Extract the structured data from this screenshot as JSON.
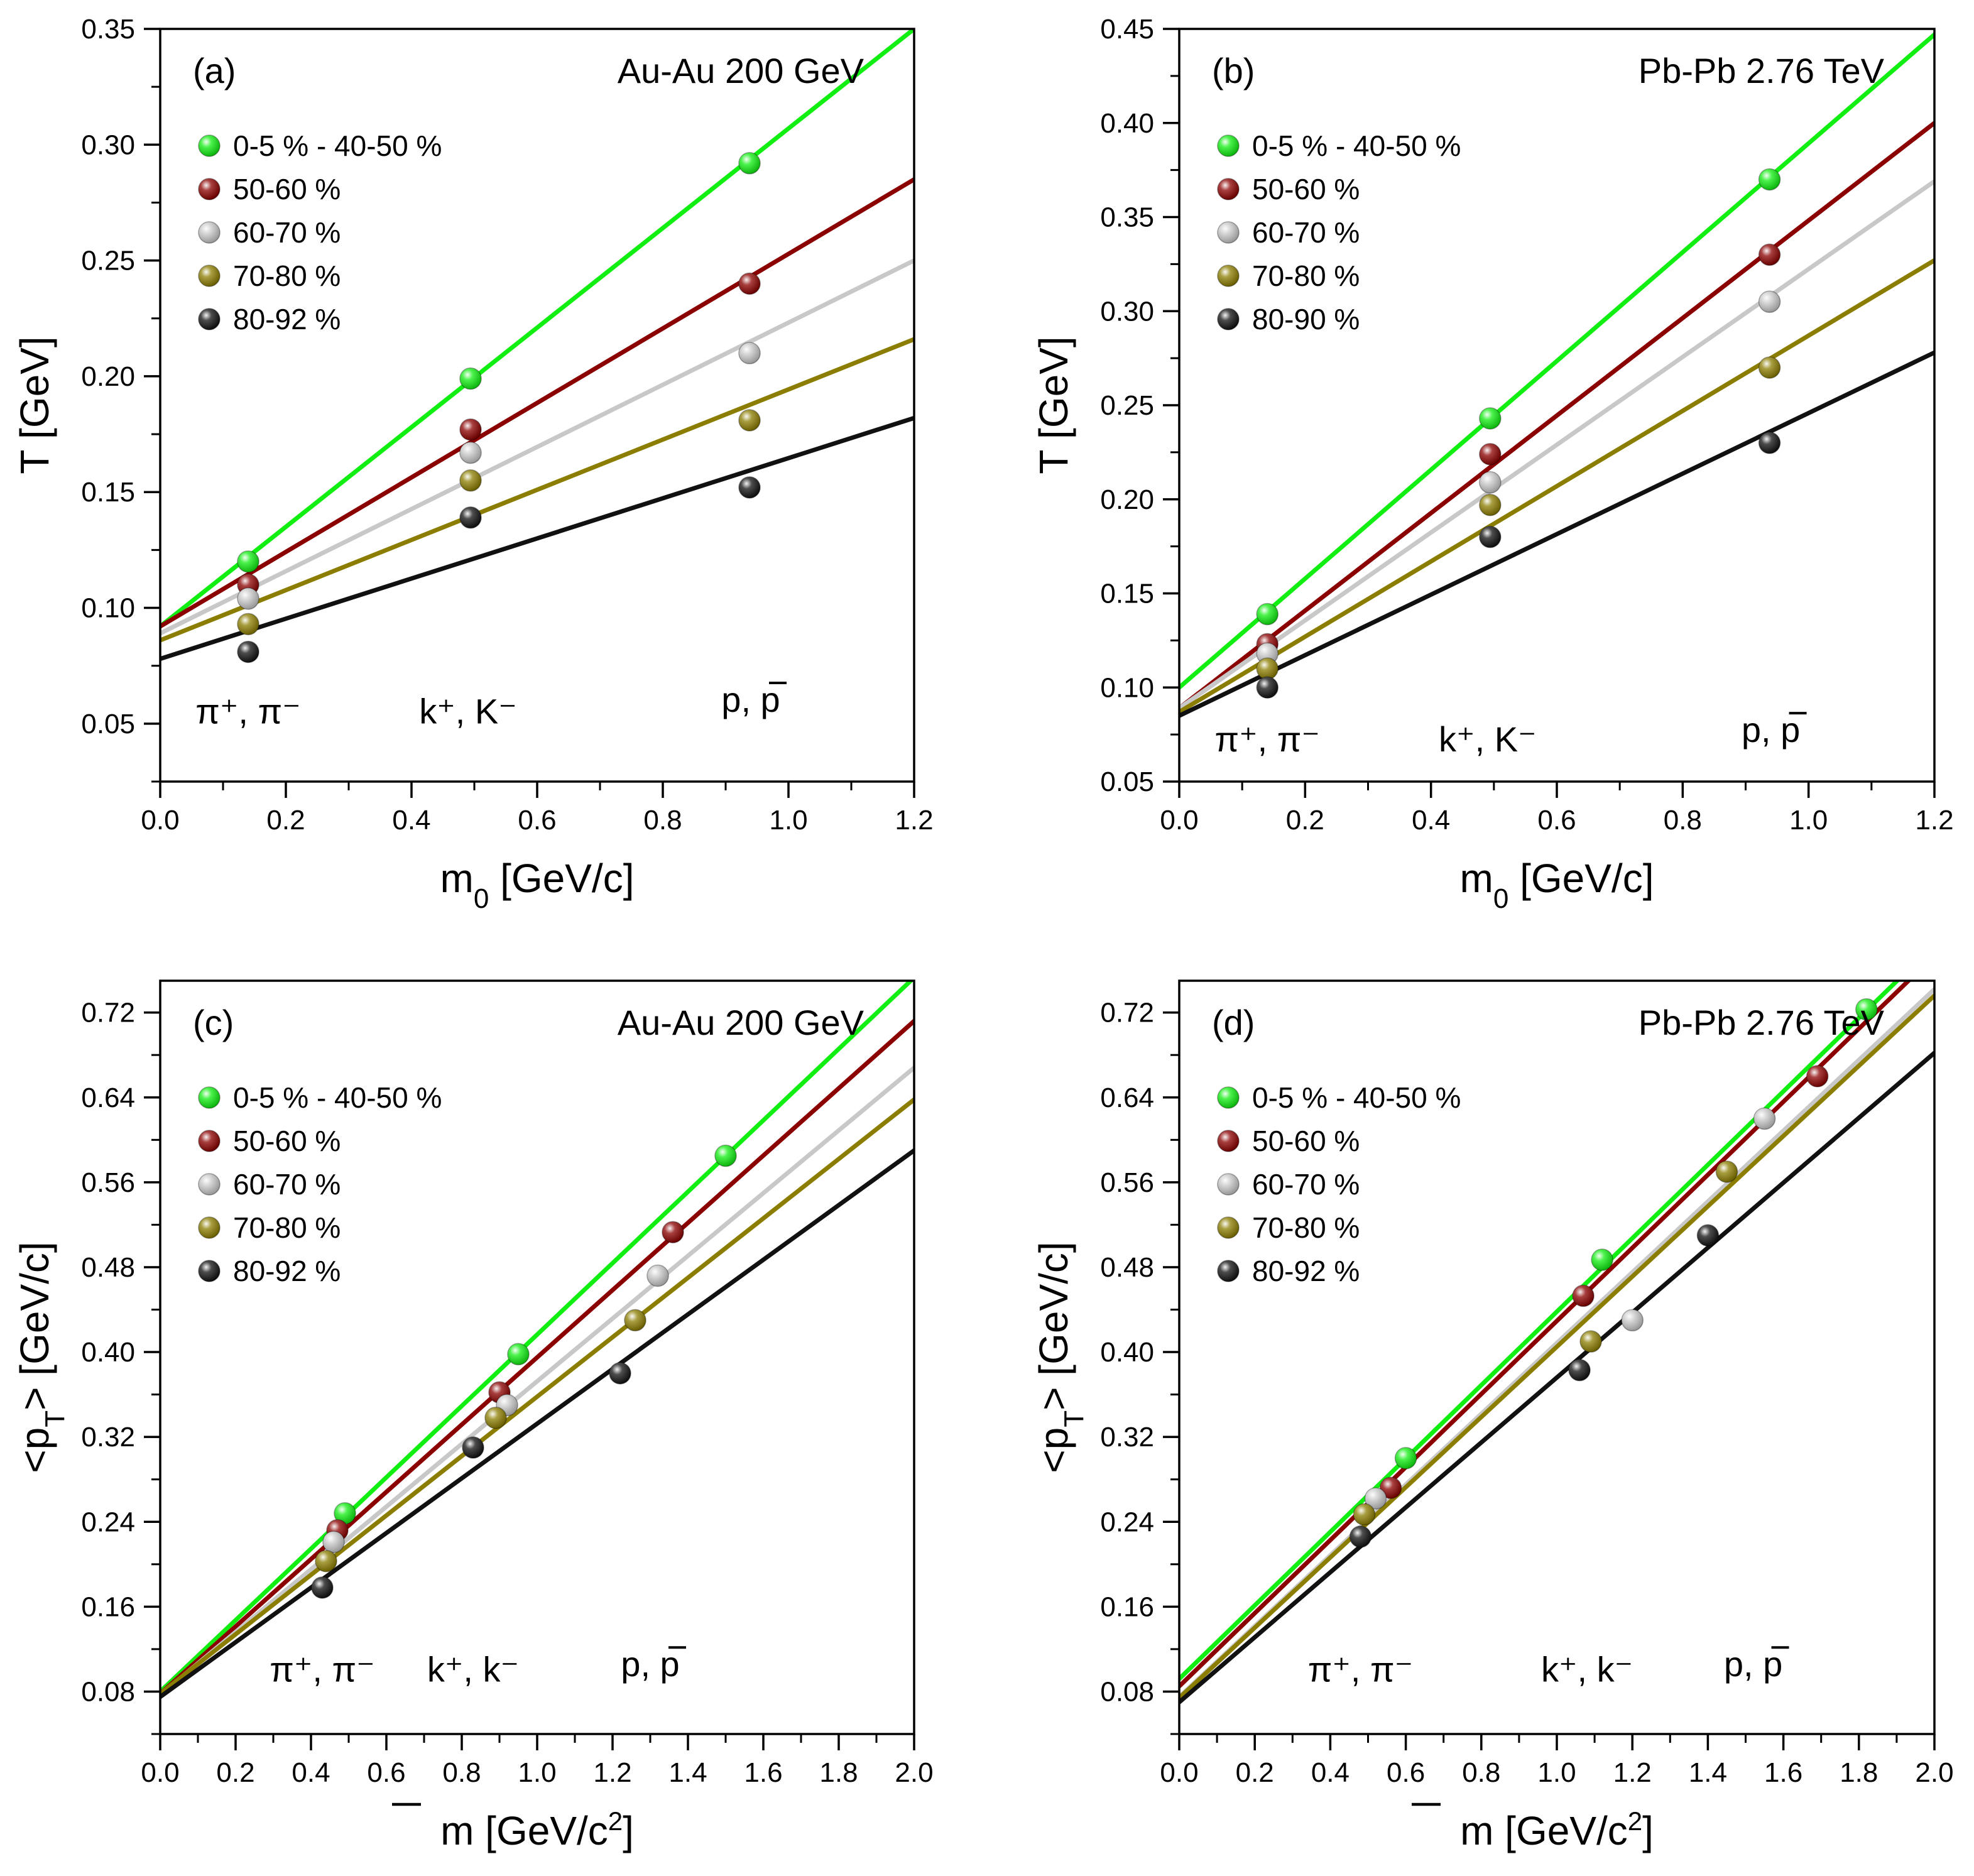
{
  "chart_data": [
    {
      "type": "scatter",
      "panel_label": "(a)",
      "system": "Au-Au  200 GeV",
      "xlabel": "m_0 [GeV/c]",
      "ylabel": "T [GeV]",
      "xlim": [
        0,
        1.2
      ],
      "ylim": [
        0.025,
        0.35
      ],
      "xticks": [
        0.0,
        0.2,
        0.4,
        0.6,
        0.8,
        1.0,
        1.2
      ],
      "xtick_labels": [
        "0.0",
        "0.2",
        "0.4",
        "0.6",
        "0.8",
        "1.0",
        "1.2"
      ],
      "yticks": [
        0.05,
        0.1,
        0.15,
        0.2,
        0.25,
        0.3,
        0.35
      ],
      "ytick_labels": [
        "0.05",
        "0.10",
        "0.15",
        "0.20",
        "0.25",
        "0.30",
        "0.35"
      ],
      "x_minor": 0.1,
      "y_minor": 0.025,
      "legend_position": "top-left",
      "particle_labels": [
        {
          "text": "π⁺, π⁻",
          "x": 0.14,
          "y": 0.055,
          "bar": false
        },
        {
          "text": "k⁺, K⁻",
          "x": 0.49,
          "y": 0.055,
          "bar": false
        },
        {
          "text": "p, p",
          "x": 0.94,
          "y": 0.06,
          "bar": true
        }
      ],
      "series": [
        {
          "name": "0-5 % - 40-50 %",
          "color": "#11ee11",
          "x": [
            0.14,
            0.494,
            0.938
          ],
          "y": [
            0.12,
            0.199,
            0.292
          ],
          "fit": [
            0.0,
            0.092,
            1.2,
            0.35
          ]
        },
        {
          "name": "50-60 %",
          "color": "#8b0000",
          "x": [
            0.14,
            0.494,
            0.938
          ],
          "y": [
            0.11,
            0.177,
            0.24
          ],
          "fit": [
            0.0,
            0.092,
            1.2,
            0.285
          ]
        },
        {
          "name": "60-70 %",
          "color": "#c8c8c8",
          "x": [
            0.14,
            0.494,
            0.938
          ],
          "y": [
            0.104,
            0.167,
            0.21
          ],
          "fit": [
            0.0,
            0.089,
            1.2,
            0.25
          ]
        },
        {
          "name": "70-80 %",
          "color": "#8b7d00",
          "x": [
            0.14,
            0.494,
            0.938
          ],
          "y": [
            0.093,
            0.155,
            0.181
          ],
          "fit": [
            0.0,
            0.086,
            1.2,
            0.216
          ]
        },
        {
          "name": "80-92 %",
          "color": "#111111",
          "x": [
            0.14,
            0.494,
            0.938
          ],
          "y": [
            0.081,
            0.139,
            0.152
          ],
          "fit": [
            0.0,
            0.078,
            1.2,
            0.182
          ]
        }
      ]
    },
    {
      "type": "scatter",
      "panel_label": "(b)",
      "system": "Pb-Pb  2.76 TeV",
      "xlabel": "m_0 [GeV/c]",
      "ylabel": "T [GeV]",
      "xlim": [
        0,
        1.2
      ],
      "ylim": [
        0.05,
        0.45
      ],
      "xticks": [
        0.0,
        0.2,
        0.4,
        0.6,
        0.8,
        1.0,
        1.2
      ],
      "xtick_labels": [
        "0.0",
        "0.2",
        "0.4",
        "0.6",
        "0.8",
        "1.0",
        "1.2"
      ],
      "yticks": [
        0.05,
        0.1,
        0.15,
        0.2,
        0.25,
        0.3,
        0.35,
        0.4,
        0.45
      ],
      "ytick_labels": [
        "0.05",
        "0.10",
        "0.15",
        "0.20",
        "0.25",
        "0.30",
        "0.35",
        "0.40",
        "0.45"
      ],
      "x_minor": 0.1,
      "y_minor": 0.025,
      "legend_position": "top-left",
      "particle_labels": [
        {
          "text": "π⁺, π⁻",
          "x": 0.14,
          "y": 0.072,
          "bar": false
        },
        {
          "text": "k⁺, K⁻",
          "x": 0.49,
          "y": 0.072,
          "bar": false
        },
        {
          "text": "p, p",
          "x": 0.94,
          "y": 0.077,
          "bar": true
        }
      ],
      "series": [
        {
          "name": "0-5 % - 40-50 %",
          "color": "#11ee11",
          "x": [
            0.14,
            0.494,
            0.938
          ],
          "y": [
            0.139,
            0.243,
            0.37
          ],
          "fit": [
            0.0,
            0.1,
            1.2,
            0.447
          ]
        },
        {
          "name": "50-60 %",
          "color": "#8b0000",
          "x": [
            0.14,
            0.494,
            0.938
          ],
          "y": [
            0.123,
            0.224,
            0.33
          ],
          "fit": [
            0.0,
            0.089,
            1.2,
            0.4
          ]
        },
        {
          "name": "60-70 %",
          "color": "#c8c8c8",
          "x": [
            0.14,
            0.494,
            0.938
          ],
          "y": [
            0.118,
            0.209,
            0.305
          ],
          "fit": [
            0.0,
            0.089,
            1.2,
            0.369
          ]
        },
        {
          "name": "70-80 %",
          "color": "#8b7d00",
          "x": [
            0.14,
            0.494,
            0.938
          ],
          "y": [
            0.11,
            0.197,
            0.27
          ],
          "fit": [
            0.0,
            0.087,
            1.2,
            0.327
          ]
        },
        {
          "name": "80-90 %",
          "color": "#111111",
          "x": [
            0.14,
            0.494,
            0.938
          ],
          "y": [
            0.1,
            0.18,
            0.23
          ],
          "fit": [
            0.0,
            0.085,
            1.2,
            0.278
          ]
        }
      ]
    },
    {
      "type": "scatter",
      "panel_label": "(c)",
      "system": "Au-Au  200 GeV",
      "xlabel": "m [GeV/c²]",
      "ylabel": "<p_T> [GeV/c]",
      "xlim": [
        0,
        2.0
      ],
      "ylim": [
        0.04,
        0.75
      ],
      "xticks": [
        0.0,
        0.2,
        0.4,
        0.6,
        0.8,
        1.0,
        1.2,
        1.4,
        1.6,
        1.8,
        2.0
      ],
      "xtick_labels": [
        "0.0",
        "0.2",
        "0.4",
        "0.6",
        "0.8",
        "1.0",
        "1.2",
        "1.4",
        "1.6",
        "1.8",
        "2.0"
      ],
      "yticks": [
        0.08,
        0.16,
        0.24,
        0.32,
        0.4,
        0.48,
        0.56,
        0.64,
        0.72
      ],
      "ytick_labels": [
        "0.08",
        "0.16",
        "0.24",
        "0.32",
        "0.40",
        "0.48",
        "0.56",
        "0.64",
        "0.72"
      ],
      "x_minor": 0.1,
      "y_minor": 0.04,
      "legend_position": "top-left",
      "particle_labels": [
        {
          "text": "π⁺, π⁻",
          "x": 0.43,
          "y": 0.1,
          "bar": false
        },
        {
          "text": "k⁺, k⁻",
          "x": 0.83,
          "y": 0.1,
          "bar": false
        },
        {
          "text": "p, p",
          "x": 1.3,
          "y": 0.105,
          "bar": true
        }
      ],
      "series": [
        {
          "name": "0-5 % - 40-50 %",
          "color": "#11ee11",
          "x": [
            0.49,
            0.95,
            1.5
          ],
          "y": [
            0.248,
            0.398,
            0.585
          ],
          "fit": [
            0.0,
            0.08,
            2.0,
            0.753
          ]
        },
        {
          "name": "50-60 %",
          "color": "#8b0000",
          "x": [
            0.47,
            0.9,
            1.36
          ],
          "y": [
            0.232,
            0.362,
            0.513
          ],
          "fit": [
            0.0,
            0.078,
            2.0,
            0.712
          ]
        },
        {
          "name": "60-70 %",
          "color": "#c8c8c8",
          "x": [
            0.46,
            0.92,
            1.32
          ],
          "y": [
            0.221,
            0.35,
            0.472
          ],
          "fit": [
            0.0,
            0.077,
            2.0,
            0.668
          ]
        },
        {
          "name": "70-80 %",
          "color": "#8b7d00",
          "x": [
            0.44,
            0.89,
            1.26
          ],
          "y": [
            0.203,
            0.338,
            0.43
          ],
          "fit": [
            0.0,
            0.078,
            2.0,
            0.638
          ]
        },
        {
          "name": "80-92 %",
          "color": "#111111",
          "x": [
            0.43,
            0.83,
            1.22
          ],
          "y": [
            0.178,
            0.31,
            0.38
          ],
          "fit": [
            0.0,
            0.075,
            2.0,
            0.59
          ]
        }
      ]
    },
    {
      "type": "scatter",
      "panel_label": "(d)",
      "system": "Pb-Pb  2.76 TeV",
      "xlabel": "m [GeV/c²]",
      "ylabel": "<p_T> [GeV/c]",
      "xlim": [
        0,
        2.0
      ],
      "ylim": [
        0.04,
        0.75
      ],
      "xticks": [
        0.0,
        0.2,
        0.4,
        0.6,
        0.8,
        1.0,
        1.2,
        1.4,
        1.6,
        1.8,
        2.0
      ],
      "xtick_labels": [
        "0.0",
        "0.2",
        "0.4",
        "0.6",
        "0.8",
        "1.0",
        "1.2",
        "1.4",
        "1.6",
        "1.8",
        "2.0"
      ],
      "yticks": [
        0.08,
        0.16,
        0.24,
        0.32,
        0.4,
        0.48,
        0.56,
        0.64,
        0.72
      ],
      "ytick_labels": [
        "0.08",
        "0.16",
        "0.24",
        "0.32",
        "0.40",
        "0.48",
        "0.56",
        "0.64",
        "0.72"
      ],
      "x_minor": 0.1,
      "y_minor": 0.04,
      "legend_position": "top-left",
      "particle_labels": [
        {
          "text": "π⁺, π⁻",
          "x": 0.48,
          "y": 0.1,
          "bar": false
        },
        {
          "text": "k⁺, k⁻",
          "x": 1.08,
          "y": 0.1,
          "bar": false
        },
        {
          "text": "p, p",
          "x": 1.52,
          "y": 0.105,
          "bar": true
        }
      ],
      "series": [
        {
          "name": "0-5 % - 40-50 %",
          "color": "#11ee11",
          "x": [
            0.6,
            1.12,
            1.82
          ],
          "y": [
            0.3,
            0.487,
            0.723
          ],
          "fit": [
            0.0,
            0.092,
            1.91,
            0.753
          ]
        },
        {
          "name": "50-60 %",
          "color": "#8b0000",
          "x": [
            0.56,
            1.07,
            1.69
          ],
          "y": [
            0.272,
            0.453,
            0.66
          ],
          "fit": [
            0.0,
            0.085,
            1.94,
            0.753
          ]
        },
        {
          "name": "60-70 %",
          "color": "#c8c8c8",
          "x": [
            0.52,
            1.2,
            1.55
          ],
          "y": [
            0.262,
            0.43,
            0.62
          ],
          "fit": [
            0.0,
            0.075,
            2.0,
            0.742
          ]
        },
        {
          "name": "70-80 %",
          "color": "#8b7d00",
          "x": [
            0.49,
            1.09,
            1.45
          ],
          "y": [
            0.247,
            0.41,
            0.57
          ],
          "fit": [
            0.0,
            0.074,
            2.0,
            0.736
          ]
        },
        {
          "name": "80-92 %",
          "color": "#111111",
          "x": [
            0.48,
            1.06,
            1.4
          ],
          "y": [
            0.226,
            0.383,
            0.51
          ],
          "fit": [
            0.0,
            0.07,
            2.0,
            0.682
          ]
        }
      ]
    }
  ]
}
